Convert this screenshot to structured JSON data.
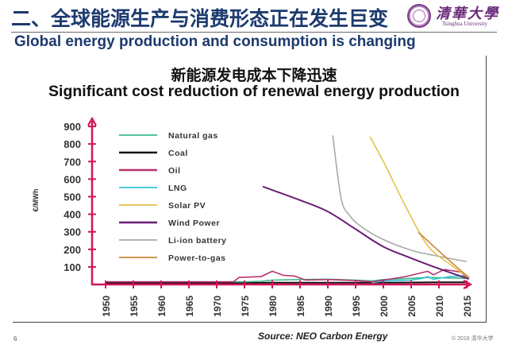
{
  "slide": {
    "title": "二、全球能源生产与消费形态正在发生巨变",
    "subtitle": "Global energy production and consumption is changing",
    "logo": {
      "name_cn": "清華大學",
      "name_en": "Tsinghua University"
    },
    "page_number": "6",
    "source": "Source: NEO Carbon Energy",
    "copyright": "© 2016 清华大学"
  },
  "colors": {
    "title": "#1c3a6e",
    "axis": "#d4145a",
    "natural_gas": "#3cb88a",
    "coal": "#111111",
    "oil": "#b8326e",
    "lng": "#33c4d6",
    "solar_pv": "#e8c04a",
    "wind_power": "#6a1e74",
    "li_ion": "#a9a9a9",
    "power_to_gas": "#c98a3a"
  },
  "chart_data": {
    "type": "line",
    "title": "新能源发电成本下降迅速",
    "subtitle": "Significant cost reduction of renewal energy production",
    "xlabel": "",
    "ylabel": "€/MWh",
    "xlim": [
      1948,
      2018
    ],
    "ylim": [
      0,
      950
    ],
    "x_ticks": [
      1950,
      1955,
      1960,
      1965,
      1970,
      1975,
      1980,
      1985,
      1990,
      1995,
      2000,
      2005,
      2010,
      2015
    ],
    "y_ticks": [
      100,
      200,
      300,
      400,
      500,
      600,
      700,
      800,
      900
    ],
    "grid": false,
    "legend_position": "top-left",
    "series": [
      {
        "name": "Natural gas",
        "color_key": "natural_gas",
        "x": [
          1950,
          1960,
          1970,
          1975,
          1978,
          1980,
          1985,
          1990,
          1995,
          1998,
          2000,
          2005,
          2008,
          2010,
          2015
        ],
        "y": [
          15,
          15,
          15,
          15,
          18,
          25,
          28,
          30,
          25,
          20,
          28,
          35,
          40,
          38,
          35
        ]
      },
      {
        "name": "Coal",
        "color_key": "coal",
        "x": [
          1950,
          1960,
          1970,
          1980,
          1990,
          2000,
          2010,
          2015
        ],
        "y": [
          8,
          8,
          8,
          10,
          10,
          10,
          12,
          12
        ]
      },
      {
        "name": "Oil",
        "color_key": "oil",
        "x": [
          1950,
          1960,
          1970,
          1973,
          1974,
          1978,
          1980,
          1982,
          1984,
          1986,
          1990,
          1995,
          1998,
          2000,
          2004,
          2008,
          2009,
          2011,
          2014,
          2015
        ],
        "y": [
          15,
          15,
          15,
          15,
          40,
          45,
          75,
          52,
          48,
          25,
          28,
          22,
          15,
          25,
          45,
          75,
          55,
          85,
          70,
          40
        ]
      },
      {
        "name": "LNG",
        "color_key": "lng",
        "x": [
          1998,
          2000,
          2005,
          2007,
          2008,
          2009,
          2012,
          2015
        ],
        "y": [
          10,
          20,
          25,
          35,
          45,
          30,
          45,
          50
        ]
      },
      {
        "name": "Solar PV",
        "color_key": "solar_pv",
        "x": [
          1997.6,
          2000,
          2004,
          2008,
          2012,
          2015.1
        ],
        "y": [
          840,
          700,
          445,
          220,
          115,
          45
        ]
      },
      {
        "name": "Wind Power",
        "color_key": "wind_power",
        "x": [
          1978.4,
          1985,
          1990,
          1995,
          2000,
          2005,
          2010,
          2015.3
        ],
        "y": [
          556,
          480,
          415,
          315,
          215,
          150,
          90,
          32
        ]
      },
      {
        "name": "Li-ion battery",
        "color_key": "li_ion",
        "x": [
          1990.9,
          1992.4,
          1994,
          1996,
          1999.6,
          2005,
          2010,
          2014.9
        ],
        "y": [
          846,
          490,
          390,
          330,
          262,
          195,
          160,
          131
        ]
      },
      {
        "name": "Power-to-gas",
        "color_key": "power_to_gas",
        "x": [
          2006.4,
          2010,
          2013,
          2015.4
        ],
        "y": [
          294,
          190,
          105,
          40
        ]
      }
    ]
  }
}
